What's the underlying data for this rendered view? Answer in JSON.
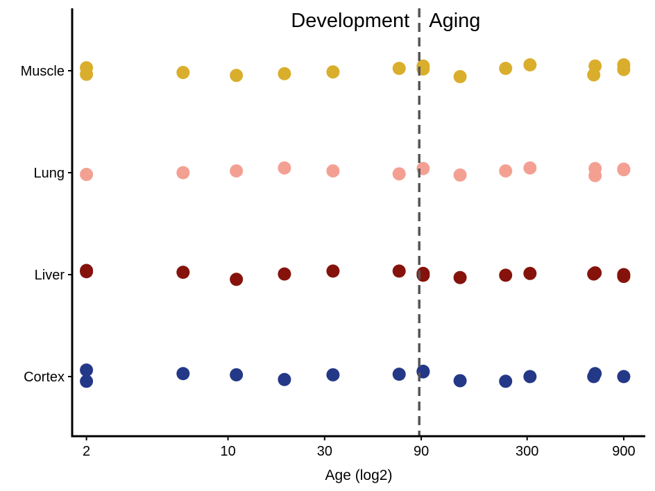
{
  "chart_data": {
    "type": "scatter",
    "xlabel": "Age (log2)",
    "x_scale": "log2",
    "x_ticks": [
      2,
      10,
      30,
      90,
      300,
      900
    ],
    "xlim": [
      1.7,
      1150
    ],
    "categories": [
      "Cortex",
      "Liver",
      "Lung",
      "Muscle"
    ],
    "divider_x": 88,
    "annotations": [
      "Development",
      "Aging"
    ],
    "grid": false,
    "legend": "none",
    "series": [
      {
        "category": "Muscle",
        "color": "#DAAE2D",
        "points": [
          {
            "x": 2,
            "y": 0.05
          },
          {
            "x": 2,
            "y": -0.06
          },
          {
            "x": 6,
            "y": -0.03
          },
          {
            "x": 11,
            "y": -0.08
          },
          {
            "x": 19,
            "y": -0.05
          },
          {
            "x": 33,
            "y": -0.02
          },
          {
            "x": 70,
            "y": 0.04
          },
          {
            "x": 92,
            "y": 0.08
          },
          {
            "x": 92,
            "y": 0.03
          },
          {
            "x": 140,
            "y": -0.1
          },
          {
            "x": 235,
            "y": 0.04
          },
          {
            "x": 310,
            "y": 0.1
          },
          {
            "x": 650,
            "y": 0.08
          },
          {
            "x": 640,
            "y": -0.07
          },
          {
            "x": 900,
            "y": 0.1
          },
          {
            "x": 900,
            "y": 0.02
          }
        ]
      },
      {
        "category": "Lung",
        "color": "#F3A093",
        "points": [
          {
            "x": 2,
            "y": -0.03
          },
          {
            "x": 6,
            "y": 0.0
          },
          {
            "x": 11,
            "y": 0.03
          },
          {
            "x": 19,
            "y": 0.08
          },
          {
            "x": 33,
            "y": 0.03
          },
          {
            "x": 70,
            "y": -0.02
          },
          {
            "x": 92,
            "y": 0.07
          },
          {
            "x": 140,
            "y": -0.04
          },
          {
            "x": 235,
            "y": 0.03
          },
          {
            "x": 310,
            "y": 0.08
          },
          {
            "x": 650,
            "y": 0.07
          },
          {
            "x": 650,
            "y": -0.05
          },
          {
            "x": 900,
            "y": 0.06
          },
          {
            "x": 900,
            "y": 0.05
          }
        ]
      },
      {
        "category": "Liver",
        "color": "#85130C",
        "points": [
          {
            "x": 2,
            "y": 0.07
          },
          {
            "x": 2,
            "y": 0.05
          },
          {
            "x": 6,
            "y": 0.04
          },
          {
            "x": 11,
            "y": -0.08
          },
          {
            "x": 19,
            "y": 0.01
          },
          {
            "x": 33,
            "y": 0.06
          },
          {
            "x": 70,
            "y": 0.06
          },
          {
            "x": 92,
            "y": 0.02
          },
          {
            "x": 92,
            "y": -0.01
          },
          {
            "x": 140,
            "y": -0.05
          },
          {
            "x": 235,
            "y": -0.01
          },
          {
            "x": 310,
            "y": 0.02
          },
          {
            "x": 650,
            "y": 0.03
          },
          {
            "x": 640,
            "y": 0.01
          },
          {
            "x": 900,
            "y": 0.0
          },
          {
            "x": 900,
            "y": -0.03
          }
        ]
      },
      {
        "category": "Cortex",
        "color": "#243888",
        "points": [
          {
            "x": 2,
            "y": 0.11
          },
          {
            "x": 2,
            "y": -0.08
          },
          {
            "x": 6,
            "y": 0.05
          },
          {
            "x": 11,
            "y": 0.03
          },
          {
            "x": 19,
            "y": -0.05
          },
          {
            "x": 33,
            "y": 0.03
          },
          {
            "x": 70,
            "y": 0.04
          },
          {
            "x": 92,
            "y": 0.09
          },
          {
            "x": 92,
            "y": 0.08
          },
          {
            "x": 140,
            "y": -0.07
          },
          {
            "x": 235,
            "y": -0.08
          },
          {
            "x": 310,
            "y": 0.0
          },
          {
            "x": 650,
            "y": 0.05
          },
          {
            "x": 640,
            "y": 0.0
          },
          {
            "x": 900,
            "y": 0.0
          }
        ]
      }
    ]
  }
}
